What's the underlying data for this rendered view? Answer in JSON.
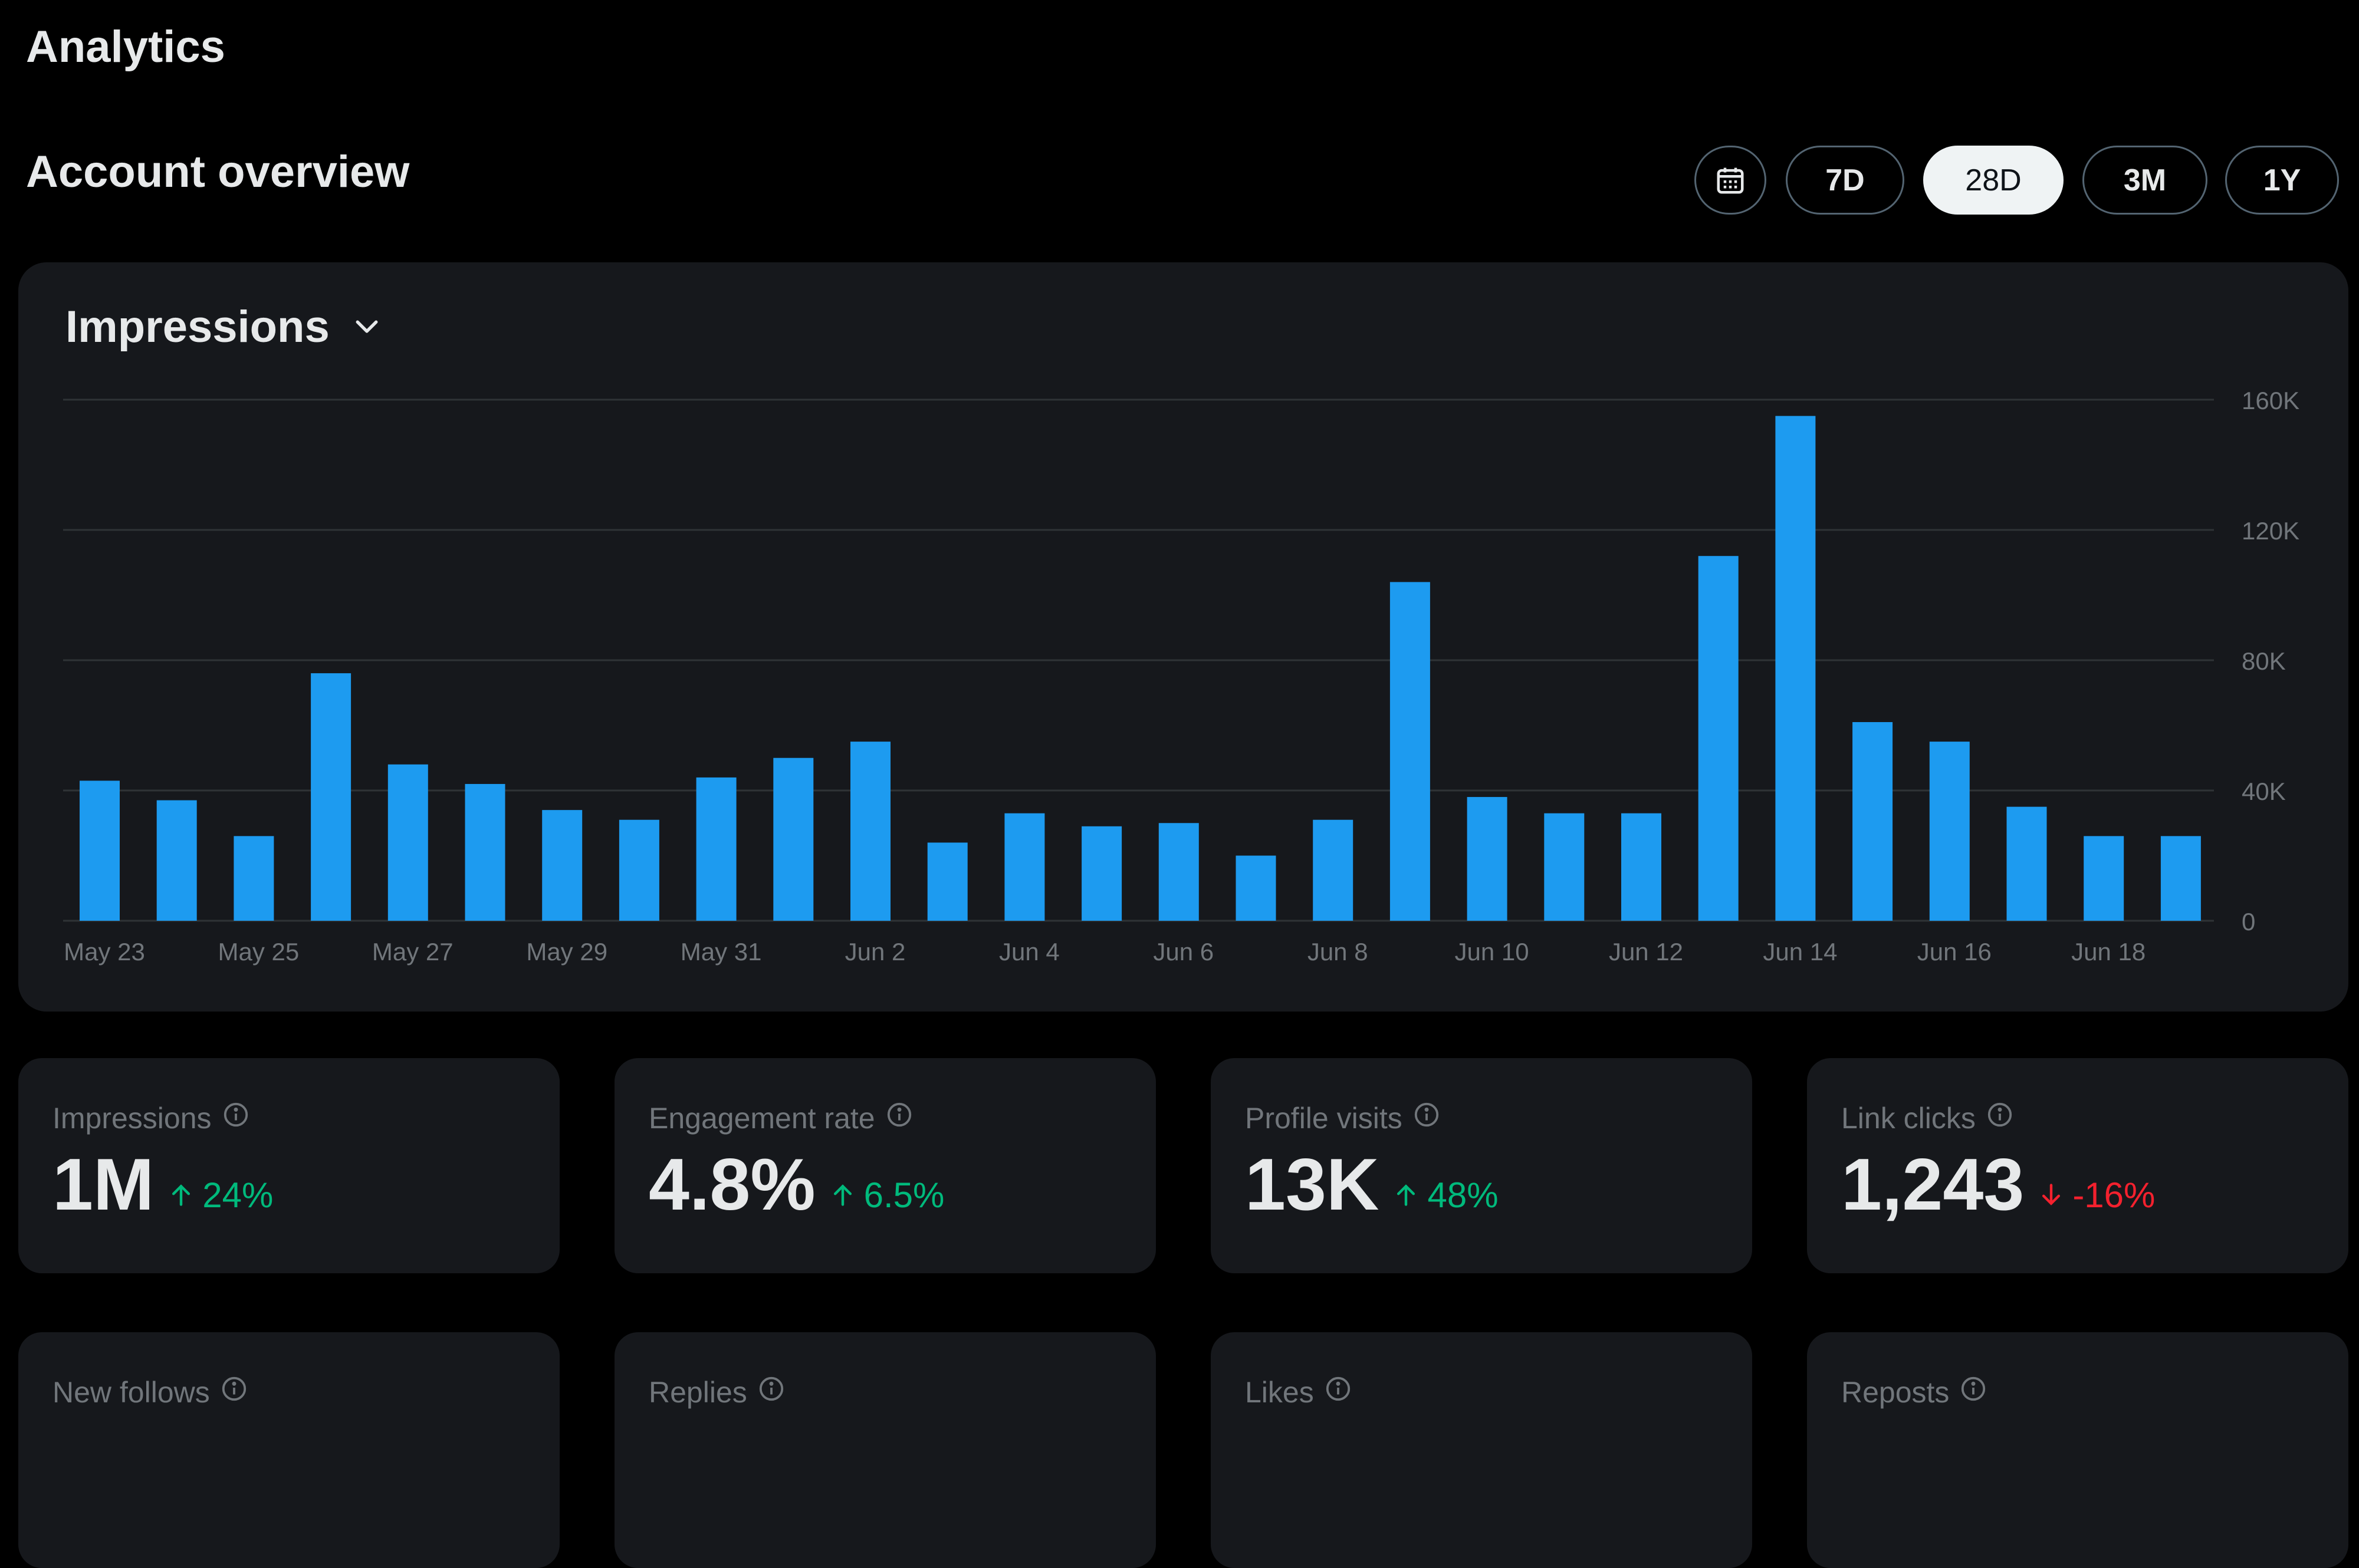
{
  "header": {
    "title": "Analytics"
  },
  "overview": {
    "title": "Account overview",
    "ranges": [
      {
        "label": "7D",
        "active": false
      },
      {
        "label": "28D",
        "active": true
      },
      {
        "label": "3M",
        "active": false
      },
      {
        "label": "1Y",
        "active": false
      }
    ],
    "calendar_icon": "calendar-icon"
  },
  "chart": {
    "metric_label": "Impressions",
    "dropdown_icon": "chevron-down-icon"
  },
  "chart_data": {
    "type": "bar",
    "title": "",
    "xlabel": "",
    "ylabel": "",
    "bar_color": "#1d9bf0",
    "gridline_color": "#2f3336",
    "grid": true,
    "y_axis_side": "right",
    "ylim": [
      0,
      160000
    ],
    "y_ticks": [
      0,
      40000,
      80000,
      120000,
      160000
    ],
    "y_tick_labels": [
      "0",
      "40K",
      "80K",
      "120K",
      "160K"
    ],
    "categories": [
      "May 23",
      "May 24",
      "May 25",
      "May 26",
      "May 27",
      "May 28",
      "May 29",
      "May 30",
      "May 31",
      "Jun 1",
      "Jun 2",
      "Jun 3",
      "Jun 4",
      "Jun 5",
      "Jun 6",
      "Jun 7",
      "Jun 8",
      "Jun 9",
      "Jun 10",
      "Jun 11",
      "Jun 12",
      "Jun 13",
      "Jun 14",
      "Jun 15",
      "Jun 16",
      "Jun 17",
      "Jun 18",
      "Jun 19"
    ],
    "x_tick_labels": [
      "May 23",
      "May 25",
      "May 27",
      "May 29",
      "May 31",
      "Jun 2",
      "Jun 4",
      "Jun 6",
      "Jun 8",
      "Jun 10",
      "Jun 12",
      "Jun 14",
      "Jun 16",
      "Jun 18"
    ],
    "series": [
      {
        "values": [
          43000,
          37000,
          26000,
          76000,
          48000,
          42000,
          34000,
          31000,
          44000,
          50000,
          55000,
          24000,
          33000,
          29000,
          30000,
          20000,
          31000,
          104000,
          38000,
          33000,
          33000,
          112000,
          155000,
          61000,
          55000,
          35000,
          26000,
          26000
        ]
      }
    ]
  },
  "stats": [
    {
      "label": "Impressions",
      "value": "1M",
      "change": "24%",
      "direction": "up"
    },
    {
      "label": "Engagement rate",
      "value": "4.8%",
      "change": "6.5%",
      "direction": "up"
    },
    {
      "label": "Profile visits",
      "value": "13K",
      "change": "48%",
      "direction": "up"
    },
    {
      "label": "Link clicks",
      "value": "1,243",
      "change": "-16%",
      "direction": "down"
    },
    {
      "label": "New follows"
    },
    {
      "label": "Replies"
    },
    {
      "label": "Likes"
    },
    {
      "label": "Reposts"
    }
  ],
  "colors": {
    "background": "#000000",
    "card": "#16181c",
    "positive": "#00ba7c",
    "negative": "#f4212e",
    "muted_text": "#71767b",
    "primary_text": "#e7e9ea"
  }
}
